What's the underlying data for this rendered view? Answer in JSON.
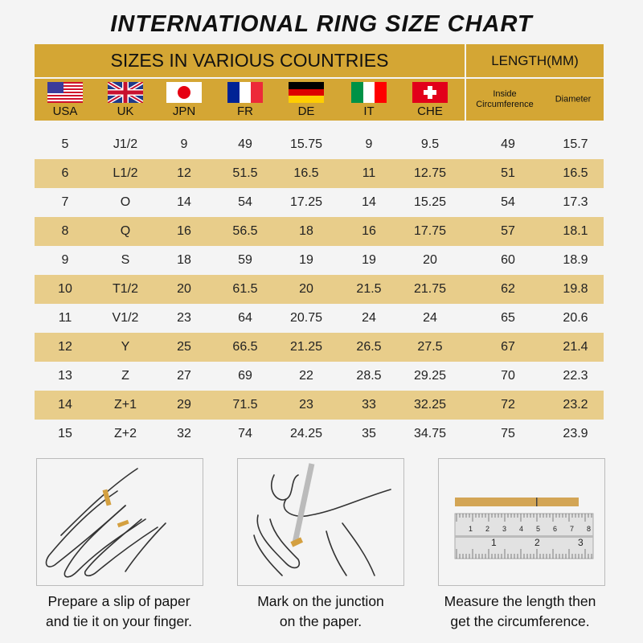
{
  "title": "INTERNATIONAL RING SIZE CHART",
  "header": {
    "sizes_label": "SIZES IN VARIOUS COUNTRIES",
    "length_label": "LENGTH(MM)",
    "countries": [
      {
        "code": "USA",
        "flag": "us-flag"
      },
      {
        "code": "UK",
        "flag": "uk-flag"
      },
      {
        "code": "JPN",
        "flag": "japan-flag"
      },
      {
        "code": "FR",
        "flag": "france-flag"
      },
      {
        "code": "DE",
        "flag": "germany-flag"
      },
      {
        "code": "IT",
        "flag": "italy-flag"
      },
      {
        "code": "CHE",
        "flag": "switzerland-flag"
      }
    ],
    "length_cols": [
      "Inside Circumference",
      "Diameter"
    ]
  },
  "colors": {
    "header": "#d4a634",
    "alt_row": "#e8cd8a"
  },
  "rows": [
    [
      "5",
      "J1/2",
      "9",
      "49",
      "15.75",
      "9",
      "9.5",
      "49",
      "15.7"
    ],
    [
      "6",
      "L1/2",
      "12",
      "51.5",
      "16.5",
      "11",
      "12.75",
      "51",
      "16.5"
    ],
    [
      "7",
      "O",
      "14",
      "54",
      "17.25",
      "14",
      "15.25",
      "54",
      "17.3"
    ],
    [
      "8",
      "Q",
      "16",
      "56.5",
      "18",
      "16",
      "17.75",
      "57",
      "18.1"
    ],
    [
      "9",
      "S",
      "18",
      "59",
      "19",
      "19",
      "20",
      "60",
      "18.9"
    ],
    [
      "10",
      "T1/2",
      "20",
      "61.5",
      "20",
      "21.5",
      "21.75",
      "62",
      "19.8"
    ],
    [
      "11",
      "V1/2",
      "23",
      "64",
      "20.75",
      "24",
      "24",
      "65",
      "20.6"
    ],
    [
      "12",
      "Y",
      "25",
      "66.5",
      "21.25",
      "26.5",
      "27.5",
      "67",
      "21.4"
    ],
    [
      "13",
      "Z",
      "27",
      "69",
      "22",
      "28.5",
      "29.25",
      "70",
      "22.3"
    ],
    [
      "14",
      "Z+1",
      "29",
      "71.5",
      "23",
      "33",
      "32.25",
      "72",
      "23.2"
    ],
    [
      "15",
      "Z+2",
      "32",
      "74",
      "24.25",
      "35",
      "34.75",
      "75",
      "23.9"
    ]
  ],
  "steps": [
    {
      "line1": "Prepare a slip of paper",
      "line2": "and tie it on your finger."
    },
    {
      "line1": "Mark on the junction",
      "line2": "on the paper."
    },
    {
      "line1": "Measure the length then",
      "line2": "get the circumference."
    }
  ],
  "ruler": {
    "top_ticks": [
      "1",
      "2",
      "3",
      "4",
      "5",
      "6",
      "7",
      "8"
    ],
    "bottom_ticks": [
      "1",
      "2",
      "3"
    ]
  }
}
